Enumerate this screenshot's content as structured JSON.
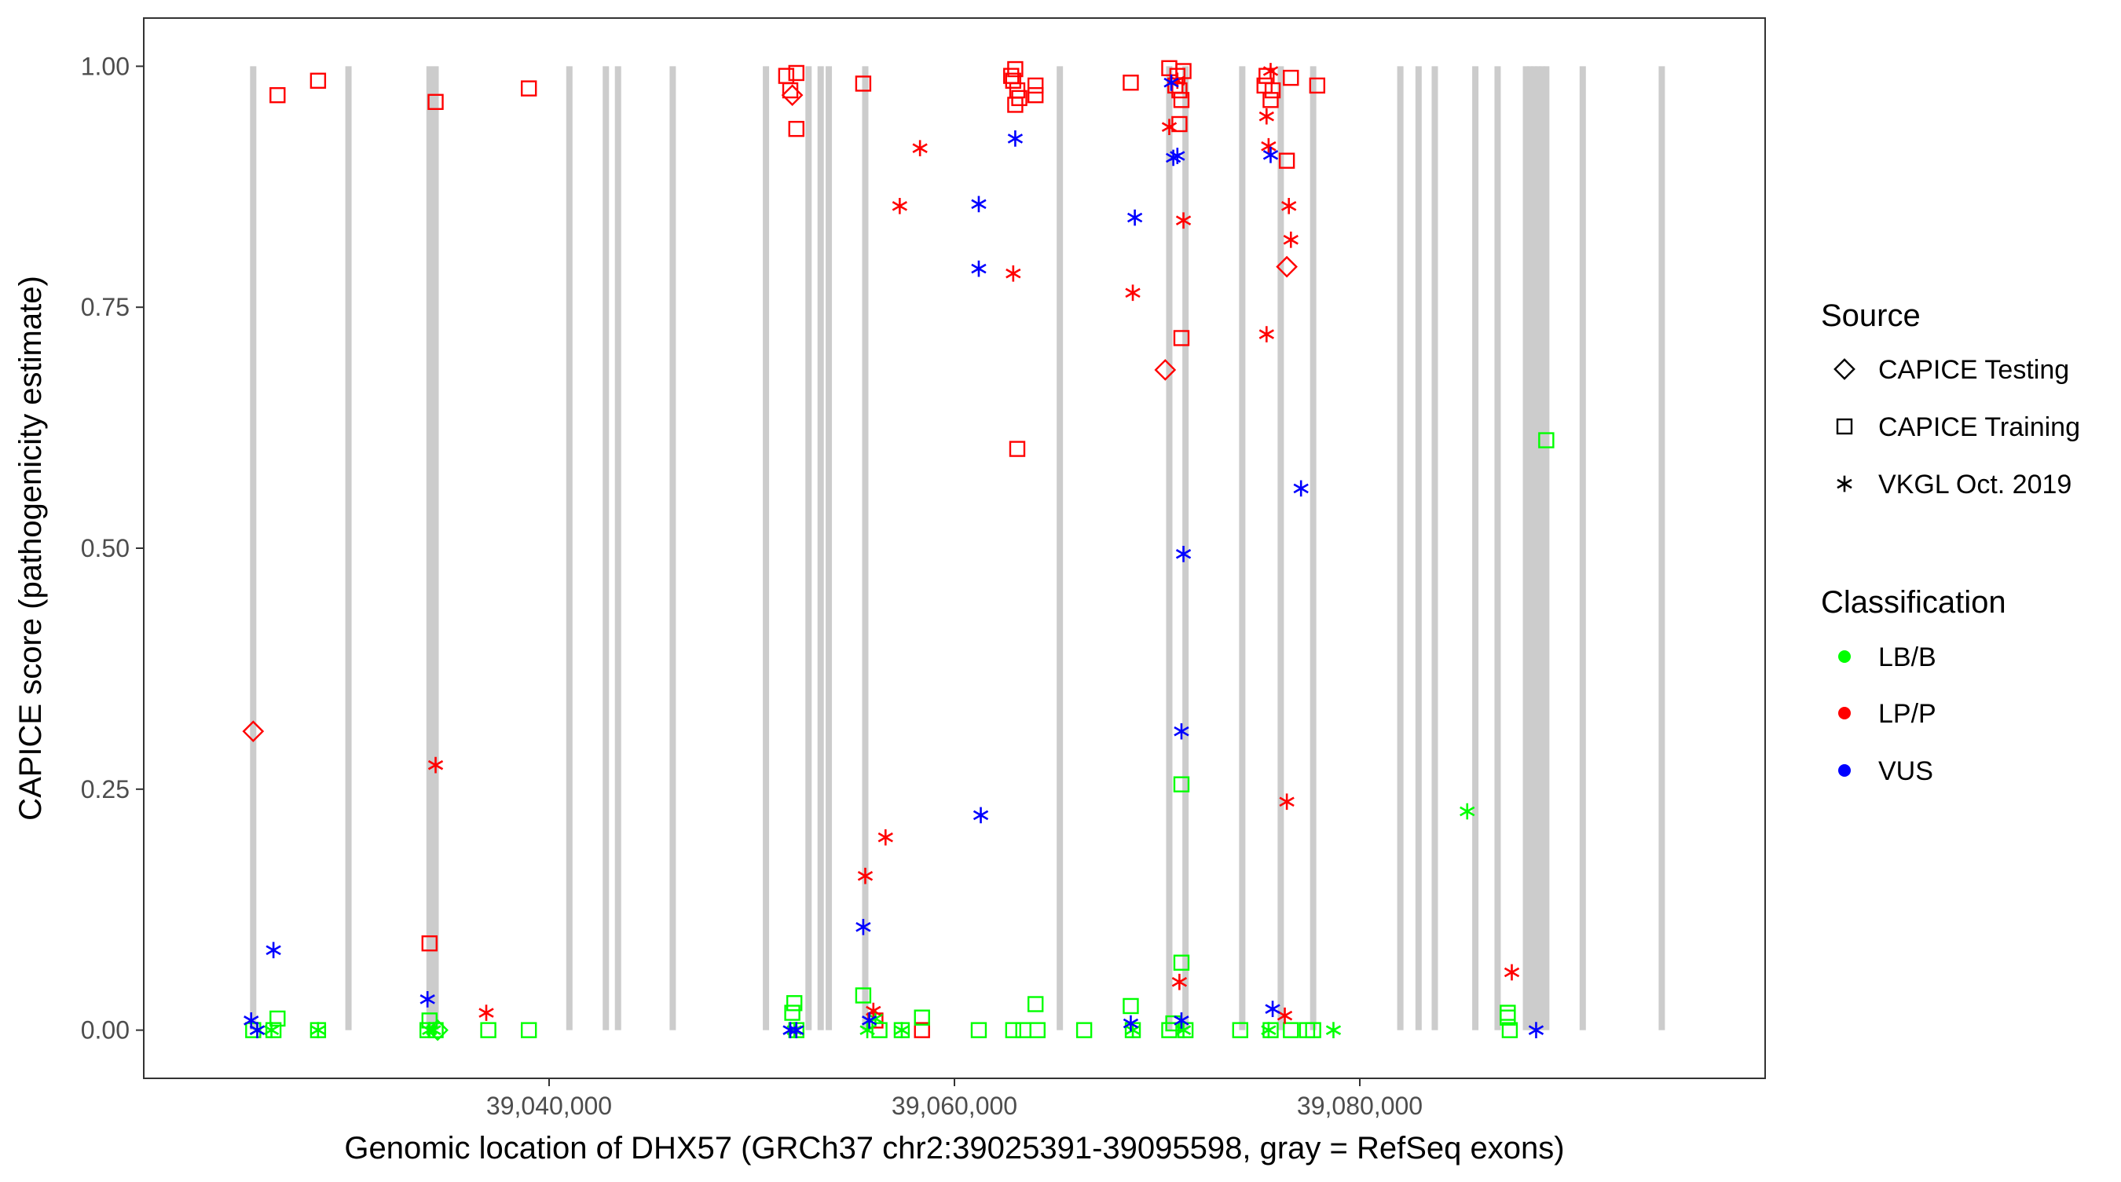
{
  "chart_data": {
    "type": "scatter",
    "xlabel": "Genomic location of DHX57 (GRCh37 chr2:39025391-39095598, gray = RefSeq exons)",
    "ylabel": "CAPICE score (pathogenicity estimate)",
    "xlim": [
      39020000,
      39100000
    ],
    "ylim": [
      -0.05,
      1.05
    ],
    "x_ticks": [
      {
        "value": 39040000,
        "label": "39,040,000"
      },
      {
        "value": 39060000,
        "label": "39,060,000"
      },
      {
        "value": 39080000,
        "label": "39,080,000"
      }
    ],
    "y_ticks": [
      {
        "value": 0.0,
        "label": "0.00"
      },
      {
        "value": 0.25,
        "label": "0.25"
      },
      {
        "value": 0.5,
        "label": "0.50"
      },
      {
        "value": 0.75,
        "label": "0.75"
      },
      {
        "value": 1.0,
        "label": "1.00"
      }
    ],
    "grid": false,
    "exons": [
      39025400,
      39030100,
      39034100,
      39034400,
      39041000,
      39042800,
      39043400,
      39046100,
      39050700,
      39052800,
      39053400,
      39053800,
      39055600,
      39065200,
      39070600,
      39071400,
      39074200,
      39076100,
      39077700,
      39082000,
      39082900,
      39083700,
      39085700,
      39086800,
      39088200,
      39088400,
      39088600,
      39088800,
      39089000,
      39089200,
      39091000,
      39094900
    ],
    "exon_color": "#cccccc",
    "legend": {
      "position": "right",
      "source_title": "Source",
      "source_items": [
        {
          "label": "CAPICE Testing",
          "shape": "diamond"
        },
        {
          "label": "CAPICE Training",
          "shape": "square"
        },
        {
          "label": "VKGL Oct. 2019",
          "shape": "asterisk"
        }
      ],
      "class_title": "Classification",
      "class_items": [
        {
          "label": "LB/B",
          "color": "#00ff00"
        },
        {
          "label": "LP/P",
          "color": "#ff0000"
        },
        {
          "label": "VUS",
          "color": "#0000ff"
        }
      ]
    },
    "series": [
      {
        "shape": "diamond",
        "class": "LP/P",
        "x": [
          39025400,
          39052000,
          39070400,
          39076400
        ],
        "y": [
          0.31,
          0.97,
          0.685,
          0.792
        ]
      },
      {
        "shape": "diamond",
        "class": "LB/B",
        "x": [
          39034500
        ],
        "y": [
          0.0
        ]
      },
      {
        "shape": "square",
        "class": "LP/P",
        "x": [
          39026600,
          39028600,
          39034100,
          39034400,
          39039000,
          39051700,
          39051900,
          39052200,
          39052200,
          39055500,
          39056100,
          39058400,
          39062800,
          39062900,
          39063000,
          39063000,
          39063100,
          39063100,
          39063200,
          39064000,
          39064000,
          39068700,
          39070600,
          39070900,
          39071000,
          39071100,
          39071100,
          39071200,
          39071200,
          39071300,
          39075300,
          39075400,
          39075600,
          39075700,
          39076400,
          39076600,
          39077900
        ],
        "y": [
          0.97,
          0.985,
          0.09,
          0.963,
          0.977,
          0.99,
          0.975,
          0.993,
          0.935,
          0.982,
          0.01,
          0.0,
          0.99,
          0.985,
          0.997,
          0.96,
          0.975,
          0.603,
          0.967,
          0.98,
          0.97,
          0.983,
          0.998,
          0.98,
          0.99,
          0.94,
          0.975,
          0.965,
          0.718,
          0.995,
          0.98,
          0.99,
          0.965,
          0.975,
          0.902,
          0.988,
          0.98
        ]
      },
      {
        "shape": "square",
        "class": "LB/B",
        "x": [
          39025400,
          39026400,
          39026600,
          39028600,
          39034000,
          39034100,
          39034400,
          39037000,
          39039000,
          39052000,
          39052100,
          39052200,
          39055500,
          39056300,
          39057400,
          39058400,
          39061200,
          39062900,
          39063400,
          39064000,
          39064100,
          39066400,
          39068700,
          39068800,
          39070600,
          39070800,
          39071200,
          39071200,
          39071400,
          39074100,
          39075600,
          39076600,
          39077400,
          39077700,
          39087300,
          39087300,
          39087400,
          39089200
        ],
        "y": [
          0.0,
          0.0,
          0.012,
          0.0,
          0.0,
          0.01,
          0.0,
          0.0,
          0.0,
          0.018,
          0.028,
          0.0,
          0.036,
          0.0,
          0.0,
          0.013,
          0.0,
          0.0,
          0.0,
          0.027,
          0.0,
          0.0,
          0.025,
          0.0,
          0.0,
          0.007,
          0.255,
          0.07,
          0.0,
          0.0,
          0.0,
          0.0,
          0.0,
          0.0,
          0.018,
          0.013,
          0.0,
          0.612
        ]
      },
      {
        "shape": "asterisk",
        "class": "LB/B",
        "x": [
          39025600,
          39026300,
          39028600,
          39034100,
          39034300,
          39052100,
          39055700,
          39056100,
          39057400,
          39068800,
          39071300,
          39075500,
          39078700,
          39085300
        ],
        "y": [
          0.0,
          0.0,
          0.0,
          0.0,
          0.0,
          0.0,
          0.0,
          0.012,
          0.0,
          0.0,
          0.0,
          0.0,
          0.0,
          0.227
        ]
      },
      {
        "shape": "asterisk",
        "class": "LP/P",
        "x": [
          39034400,
          39036900,
          39055600,
          39056000,
          39056600,
          39057300,
          39058300,
          39062900,
          39068800,
          39070600,
          39071000,
          39071100,
          39071300,
          39075400,
          39075400,
          39075500,
          39075600,
          39076300,
          39076400,
          39076500,
          39076600,
          39087500
        ],
        "y": [
          0.275,
          0.018,
          0.16,
          0.02,
          0.2,
          0.855,
          0.915,
          0.785,
          0.765,
          0.937,
          0.985,
          0.05,
          0.84,
          0.722,
          0.948,
          0.917,
          0.995,
          0.015,
          0.237,
          0.855,
          0.82,
          0.06
        ]
      },
      {
        "shape": "asterisk",
        "class": "VUS",
        "x": [
          39025300,
          39025600,
          39026400,
          39034000,
          39051900,
          39052200,
          39055500,
          39055800,
          39061200,
          39061200,
          39061300,
          39063000,
          39068700,
          39068900,
          39070700,
          39070800,
          39071000,
          39071200,
          39071200,
          39071300,
          39075600,
          39075700,
          39077100,
          39088700
        ],
        "y": [
          0.01,
          0.0,
          0.083,
          0.032,
          0.0,
          0.0,
          0.107,
          0.01,
          0.857,
          0.79,
          0.223,
          0.925,
          0.007,
          0.843,
          0.983,
          0.905,
          0.907,
          0.01,
          0.31,
          0.494,
          0.908,
          0.022,
          0.562,
          0.0
        ]
      }
    ]
  }
}
